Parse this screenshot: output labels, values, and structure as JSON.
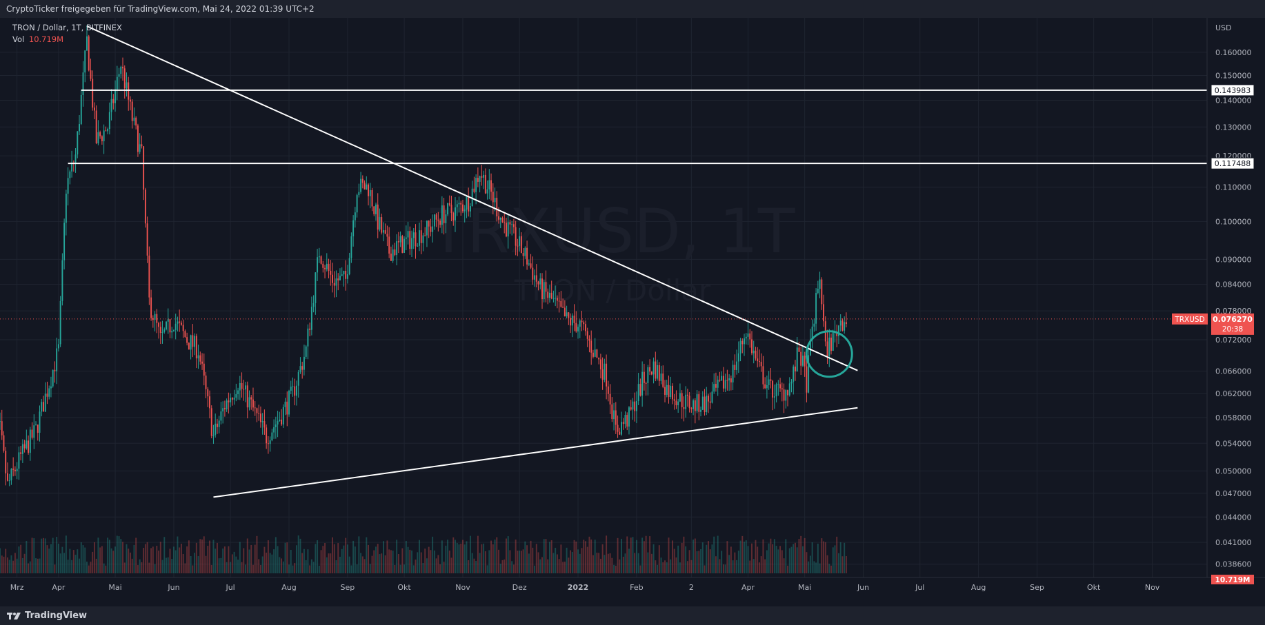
{
  "header": {
    "text": "CryptoTicker freigegeben für TradingView.com, Mai 24, 2022 01:39 UTC+2"
  },
  "legend": {
    "symbol": "TRON / Dollar, 1T, BITFINEX",
    "vol_label": "Vol",
    "vol_value": "10.719M"
  },
  "watermark": {
    "line1": "TRXUSD, 1T",
    "line2": "TRON / Dollar"
  },
  "footer": {
    "brand": "TradingView"
  },
  "colors": {
    "bg": "#131722",
    "grid": "#1f2430",
    "up": "#26a69a",
    "down": "#ef5350",
    "lines": "#ffffff",
    "circle": "#26a69a"
  },
  "chart_data": {
    "type": "candlestick",
    "y_axis": {
      "unit": "USD",
      "scale": "log",
      "range": [
        0.0372,
        0.176
      ],
      "ticks": [
        "0.038600",
        "0.041000",
        "0.044000",
        "0.047000",
        "0.050000",
        "0.054000",
        "0.058000",
        "0.062000",
        "0.066000",
        "0.072000",
        "0.078000",
        "0.084000",
        "0.090000",
        "0.100000",
        "0.110000",
        "0.120000",
        "0.130000",
        "0.140000",
        "0.150000",
        "0.160000"
      ]
    },
    "x_axis": {
      "range": [
        "2021-03-01",
        "2022-11-30"
      ],
      "ticks": [
        {
          "label": "Mrz",
          "date": "2021-03-10"
        },
        {
          "label": "Apr",
          "date": "2021-04-01"
        },
        {
          "label": "Mai",
          "date": "2021-05-01"
        },
        {
          "label": "Jun",
          "date": "2021-06-01"
        },
        {
          "label": "Jul",
          "date": "2021-07-01"
        },
        {
          "label": "Aug",
          "date": "2021-08-01"
        },
        {
          "label": "Sep",
          "date": "2021-09-01"
        },
        {
          "label": "Okt",
          "date": "2021-10-01"
        },
        {
          "label": "Nov",
          "date": "2021-11-01"
        },
        {
          "label": "Dez",
          "date": "2021-12-01"
        },
        {
          "label": "2022",
          "date": "2022-01-01"
        },
        {
          "label": "Feb",
          "date": "2022-02-01"
        },
        {
          "label": "2",
          "date": "2022-03-02"
        },
        {
          "label": "Apr",
          "date": "2022-04-01"
        },
        {
          "label": "Mai",
          "date": "2022-05-01"
        },
        {
          "label": "Jun",
          "date": "2022-06-01"
        },
        {
          "label": "Jul",
          "date": "2022-07-01"
        },
        {
          "label": "Aug",
          "date": "2022-08-01"
        },
        {
          "label": "Sep",
          "date": "2022-09-01"
        },
        {
          "label": "Okt",
          "date": "2022-10-01"
        },
        {
          "label": "Nov",
          "date": "2022-11-01"
        }
      ]
    },
    "price_path": [
      [
        "2021-02-23",
        0.0555
      ],
      [
        "2021-03-01",
        0.056
      ],
      [
        "2021-03-05",
        0.048
      ],
      [
        "2021-03-12",
        0.052
      ],
      [
        "2021-03-20",
        0.056
      ],
      [
        "2021-03-28",
        0.065
      ],
      [
        "2021-04-01",
        0.07
      ],
      [
        "2021-04-05",
        0.11
      ],
      [
        "2021-04-10",
        0.12
      ],
      [
        "2021-04-16",
        0.165
      ],
      [
        "2021-04-21",
        0.125
      ],
      [
        "2021-04-27",
        0.13
      ],
      [
        "2021-05-04",
        0.155
      ],
      [
        "2021-05-10",
        0.133
      ],
      [
        "2021-05-15",
        0.12
      ],
      [
        "2021-05-19",
        0.08
      ],
      [
        "2021-05-25",
        0.072
      ],
      [
        "2021-06-01",
        0.076
      ],
      [
        "2021-06-08",
        0.072
      ],
      [
        "2021-06-14",
        0.07
      ],
      [
        "2021-06-22",
        0.055
      ],
      [
        "2021-06-28",
        0.06
      ],
      [
        "2021-07-05",
        0.064
      ],
      [
        "2021-07-12",
        0.06
      ],
      [
        "2021-07-20",
        0.055
      ],
      [
        "2021-07-27",
        0.058
      ],
      [
        "2021-08-03",
        0.062
      ],
      [
        "2021-08-10",
        0.07
      ],
      [
        "2021-08-17",
        0.092
      ],
      [
        "2021-08-24",
        0.085
      ],
      [
        "2021-08-31",
        0.085
      ],
      [
        "2021-09-06",
        0.11
      ],
      [
        "2021-09-12",
        0.11
      ],
      [
        "2021-09-17",
        0.1
      ],
      [
        "2021-09-23",
        0.092
      ],
      [
        "2021-09-30",
        0.094
      ],
      [
        "2021-10-07",
        0.096
      ],
      [
        "2021-10-14",
        0.098
      ],
      [
        "2021-10-21",
        0.102
      ],
      [
        "2021-10-28",
        0.103
      ],
      [
        "2021-11-04",
        0.106
      ],
      [
        "2021-11-10",
        0.115
      ],
      [
        "2021-11-16",
        0.108
      ],
      [
        "2021-11-22",
        0.1
      ],
      [
        "2021-11-29",
        0.095
      ],
      [
        "2021-12-05",
        0.09
      ],
      [
        "2021-12-12",
        0.083
      ],
      [
        "2021-12-19",
        0.08
      ],
      [
        "2021-12-26",
        0.076
      ],
      [
        "2022-01-02",
        0.075
      ],
      [
        "2022-01-09",
        0.07
      ],
      [
        "2022-01-16",
        0.065
      ],
      [
        "2022-01-21",
        0.056
      ],
      [
        "2022-01-28",
        0.058
      ],
      [
        "2022-02-04",
        0.064
      ],
      [
        "2022-02-10",
        0.067
      ],
      [
        "2022-02-17",
        0.063
      ],
      [
        "2022-02-24",
        0.061
      ],
      [
        "2022-03-03",
        0.06
      ],
      [
        "2022-03-10",
        0.0605
      ],
      [
        "2022-03-17",
        0.063
      ],
      [
        "2022-03-24",
        0.066
      ],
      [
        "2022-03-31",
        0.074
      ],
      [
        "2022-04-06",
        0.067
      ],
      [
        "2022-04-12",
        0.063
      ],
      [
        "2022-04-19",
        0.062
      ],
      [
        "2022-04-24",
        0.064
      ],
      [
        "2022-04-28",
        0.07
      ],
      [
        "2022-05-02",
        0.064
      ],
      [
        "2022-05-05",
        0.074
      ],
      [
        "2022-05-09",
        0.086
      ],
      [
        "2022-05-12",
        0.07
      ],
      [
        "2022-05-16",
        0.072
      ],
      [
        "2022-05-20",
        0.076
      ],
      [
        "2022-05-23",
        0.0763
      ]
    ],
    "trendlines": [
      {
        "name": "descending-resistance",
        "from": [
          "2021-04-16",
          0.172
        ],
        "to": [
          "2022-05-29",
          0.0661
        ]
      },
      {
        "name": "ascending-support",
        "from": [
          "2021-06-22",
          0.0465
        ],
        "to": [
          "2022-05-29",
          0.0596
        ]
      },
      {
        "name": "resistance-level",
        "from": [
          "2021-04-13",
          0.143983
        ],
        "to": [
          "2022-11-30",
          0.143983
        ]
      },
      {
        "name": "support-level",
        "from": [
          "2021-04-06",
          0.117488
        ],
        "to": [
          "2022-11-30",
          0.117488
        ]
      }
    ],
    "levels": [
      {
        "value": 0.143983,
        "label": "0.143983"
      },
      {
        "value": 0.117488,
        "label": "0.117488"
      }
    ],
    "last_price": {
      "symbol": "TRXUSD",
      "value": 0.07627,
      "label": "0.076270",
      "countdown": "20:38"
    },
    "volume_badge": {
      "label": "10.719M"
    },
    "highlight_circle": {
      "center": [
        "2022-05-14",
        0.0692
      ]
    }
  }
}
